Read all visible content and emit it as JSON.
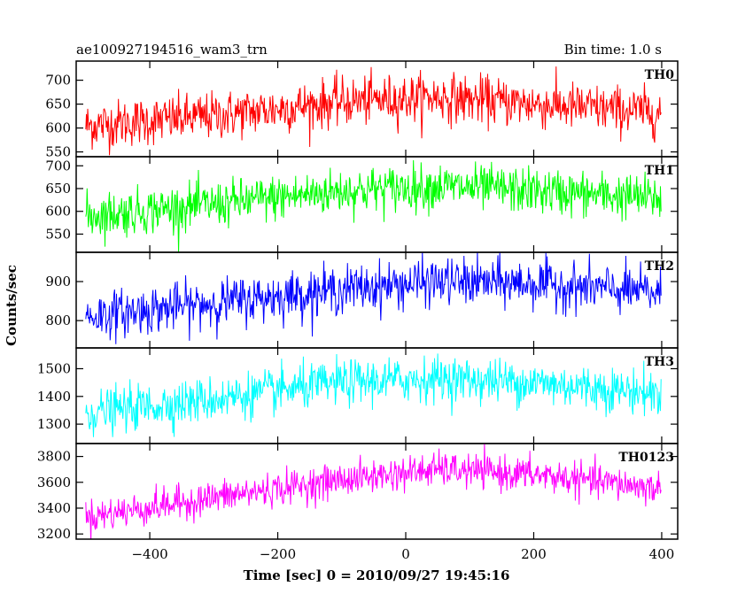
{
  "header": {
    "title": "ae100927194516_wam3_trn",
    "bin_time": "Bin time: 1.0 s"
  },
  "chart_data": {
    "type": "line",
    "title": "ae100927194516_wam3_trn",
    "subtitle": "Bin time: 1.0 s",
    "xlabel": "Time [sec] 0 = 2010/09/27 19:45:16",
    "ylabel": "Counts/sec",
    "xlim": [
      -515,
      425
    ],
    "x_ticks": [
      -400,
      -200,
      0,
      200,
      400
    ],
    "x_tick_labels": [
      "−400",
      "−200",
      "0",
      "200",
      "400"
    ],
    "x_range": [
      -500,
      399
    ],
    "x_step": 1,
    "grid": false,
    "panels": [
      {
        "name": "TH0",
        "color": "#ff0000",
        "ylim": [
          540,
          740
        ],
        "y_ticks": [
          550,
          600,
          650,
          700
        ],
        "y_tick_labels": [
          "550",
          "600",
          "650",
          "700"
        ],
        "trend": [
          [
            -500,
            605
          ],
          [
            -300,
            625
          ],
          [
            -100,
            655
          ],
          [
            50,
            665
          ],
          [
            200,
            650
          ],
          [
            399,
            632
          ]
        ],
        "noise_sd": 25
      },
      {
        "name": "TH1",
        "color": "#00ff00",
        "ylim": [
          510,
          720
        ],
        "y_ticks": [
          550,
          600,
          650,
          700
        ],
        "y_tick_labels": [
          "550",
          "600",
          "650",
          "700"
        ],
        "trend": [
          [
            -500,
            590
          ],
          [
            -300,
            615
          ],
          [
            -100,
            645
          ],
          [
            50,
            655
          ],
          [
            200,
            645
          ],
          [
            399,
            628
          ]
        ],
        "noise_sd": 25
      },
      {
        "name": "TH2",
        "color": "#0000ff",
        "ylim": [
          730,
          975
        ],
        "y_ticks": [
          800,
          900
        ],
        "y_tick_labels": [
          "800",
          "900"
        ],
        "trend": [
          [
            -500,
            810
          ],
          [
            -300,
            845
          ],
          [
            -100,
            880
          ],
          [
            50,
            900
          ],
          [
            200,
            895
          ],
          [
            399,
            870
          ]
        ],
        "noise_sd": 30
      },
      {
        "name": "TH3",
        "color": "#00ffff",
        "ylim": [
          1230,
          1575
        ],
        "y_ticks": [
          1300,
          1400,
          1500
        ],
        "y_tick_labels": [
          "1300",
          "1400",
          "1500"
        ],
        "trend": [
          [
            -500,
            1340
          ],
          [
            -300,
            1390
          ],
          [
            -100,
            1450
          ],
          [
            50,
            1465
          ],
          [
            200,
            1450
          ],
          [
            399,
            1410
          ]
        ],
        "noise_sd": 40
      },
      {
        "name": "TH0123",
        "color": "#ff00ff",
        "ylim": [
          3160,
          3900
        ],
        "y_ticks": [
          3200,
          3400,
          3600,
          3800
        ],
        "y_tick_labels": [
          "3200",
          "3400",
          "3600",
          "3800"
        ],
        "trend": [
          [
            -500,
            3330
          ],
          [
            -300,
            3480
          ],
          [
            -100,
            3620
          ],
          [
            50,
            3700
          ],
          [
            200,
            3660
          ],
          [
            399,
            3550
          ]
        ],
        "noise_sd": 65
      }
    ]
  }
}
